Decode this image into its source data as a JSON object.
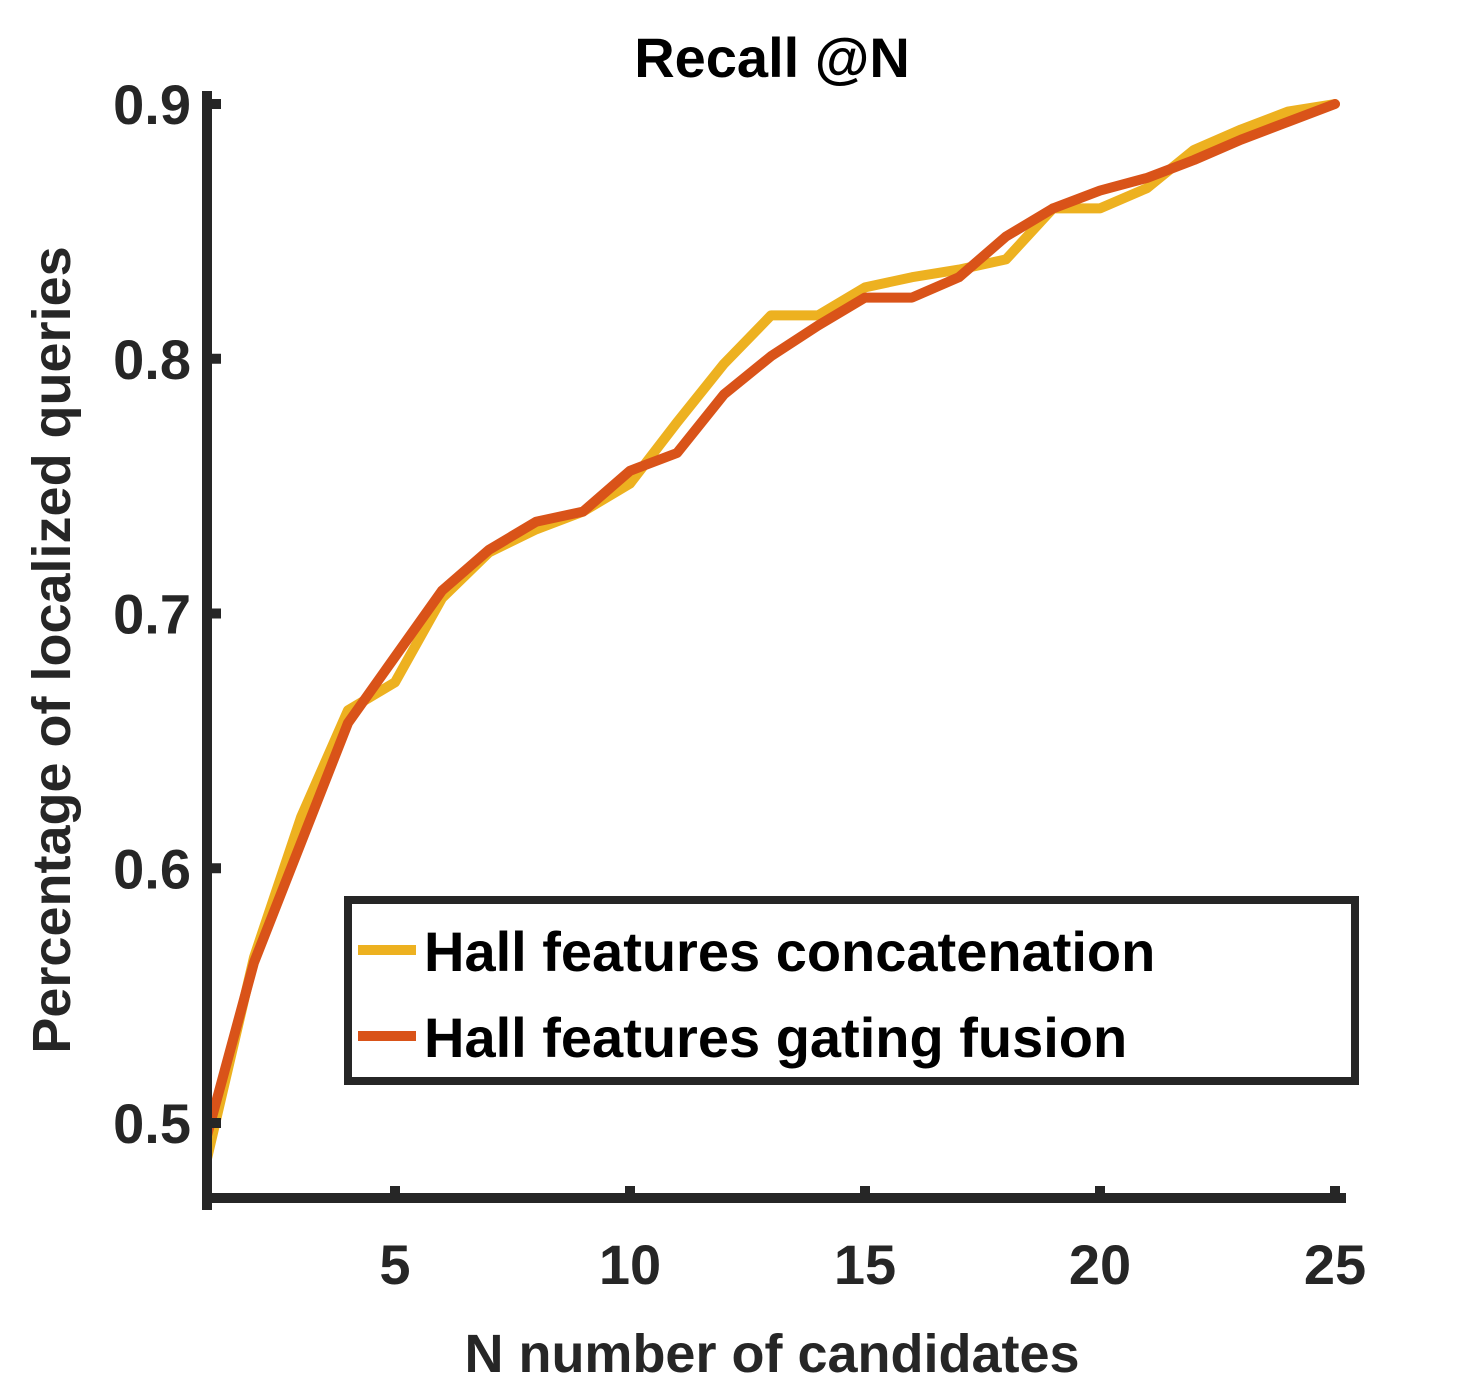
{
  "chart_data": {
    "type": "line",
    "title": "Recall @N",
    "xlabel": "N number of candidates",
    "ylabel": "Percentage of localized queries",
    "xlim": [
      1,
      25
    ],
    "ylim": [
      0.47,
      0.9
    ],
    "xticks": [
      5,
      10,
      15,
      20,
      25
    ],
    "yticks": [
      0.5,
      0.6,
      0.7,
      0.8,
      0.9
    ],
    "xtick_labels": [
      "5",
      "10",
      "15",
      "20",
      "25"
    ],
    "ytick_labels": [
      "0.5",
      "0.6",
      "0.7",
      "0.8",
      "0.9"
    ],
    "grid": false,
    "legend_position": "bottom-right",
    "x": [
      1,
      2,
      3,
      4,
      5,
      6,
      7,
      8,
      9,
      10,
      11,
      12,
      13,
      14,
      15,
      16,
      17,
      18,
      19,
      20,
      21,
      22,
      23,
      24,
      25
    ],
    "series": [
      {
        "name": "Hall features concatenation",
        "color": "#EDB120",
        "values": [
          0.486,
          0.565,
          0.62,
          0.662,
          0.673,
          0.706,
          0.724,
          0.733,
          0.74,
          0.751,
          0.775,
          0.798,
          0.817,
          0.817,
          0.828,
          0.832,
          0.835,
          0.839,
          0.859,
          0.859,
          0.867,
          0.882,
          0.89,
          0.897,
          0.9
        ]
      },
      {
        "name": "Hall features gating fusion",
        "color": "#D95319",
        "values": [
          0.495,
          0.563,
          0.61,
          0.657,
          0.683,
          0.709,
          0.725,
          0.736,
          0.74,
          0.756,
          0.763,
          0.786,
          0.801,
          0.813,
          0.824,
          0.824,
          0.832,
          0.848,
          0.859,
          0.866,
          0.871,
          0.878,
          0.886,
          0.893,
          0.9
        ]
      }
    ]
  }
}
